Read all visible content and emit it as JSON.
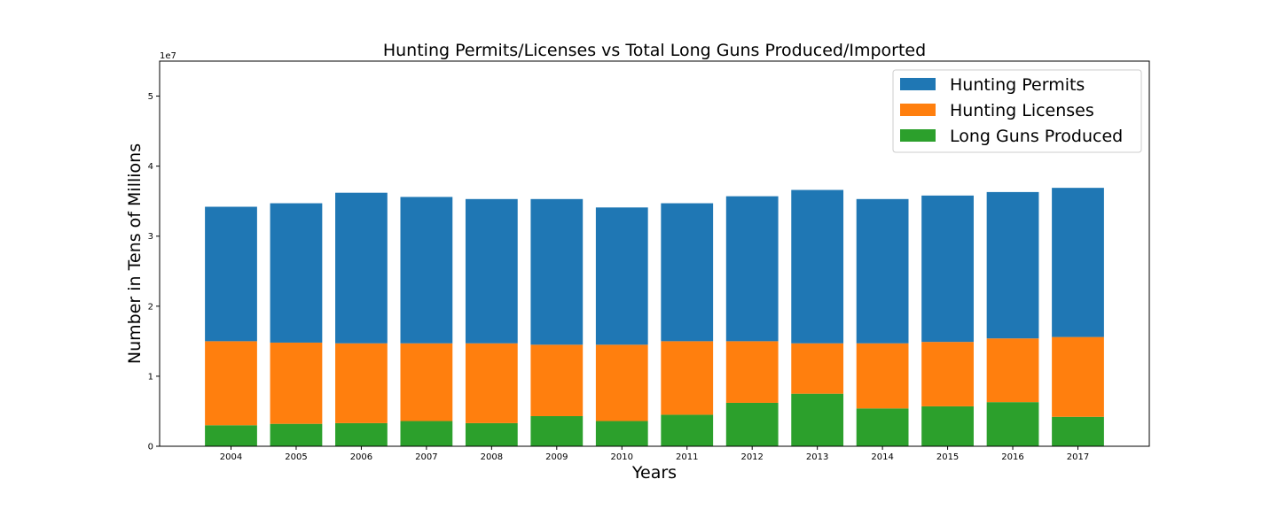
{
  "chart_data": {
    "type": "bar",
    "stacked": true,
    "title": "Hunting Permits/Licenses vs Total Long Guns Produced/Imported",
    "xlabel": "Years",
    "ylabel": "Number in Tens of Millions",
    "y_offset_text": "1e7",
    "ylim": [
      0,
      55000000
    ],
    "yticks": [
      0,
      10000000,
      20000000,
      30000000,
      40000000,
      50000000
    ],
    "ytick_labels": [
      "0",
      "1",
      "2",
      "3",
      "4",
      "5"
    ],
    "categories": [
      "2004",
      "2005",
      "2006",
      "2007",
      "2008",
      "2009",
      "2010",
      "2011",
      "2012",
      "2013",
      "2014",
      "2015",
      "2016",
      "2017"
    ],
    "series": [
      {
        "name": "Hunting Permits",
        "color": "#1f77b4",
        "values": [
          19200000,
          19900000,
          21500000,
          20900000,
          20600000,
          20800000,
          19600000,
          19700000,
          20700000,
          21900000,
          20600000,
          20900000,
          20900000,
          21300000
        ]
      },
      {
        "name": "Hunting Licenses",
        "color": "#ff7f0e",
        "values": [
          12000000,
          11600000,
          11400000,
          11100000,
          11400000,
          10200000,
          10900000,
          10500000,
          8800000,
          7200000,
          9300000,
          9200000,
          9100000,
          11400000
        ]
      },
      {
        "name": "Long Guns Produced",
        "color": "#2ca02c",
        "values": [
          3000000,
          3200000,
          3300000,
          3600000,
          3300000,
          4300000,
          3600000,
          4500000,
          6200000,
          7500000,
          5400000,
          5700000,
          6300000,
          4200000
        ]
      }
    ],
    "legend_position": "upper right",
    "grid": false
  }
}
